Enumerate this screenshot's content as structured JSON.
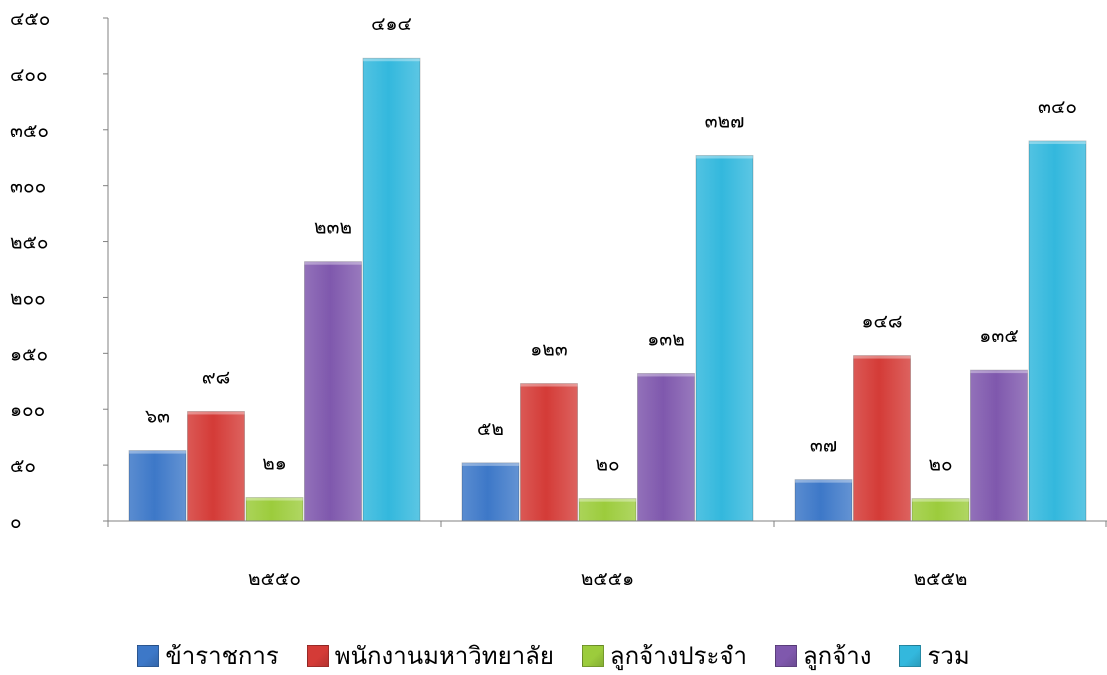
{
  "chart_data": {
    "type": "bar",
    "categories": [
      "๒๕๕๐",
      "๒๕๕๑",
      "๒๕๕๒"
    ],
    "series": [
      {
        "name": "ข้าราชการ",
        "color": "#3d78c8",
        "values": [
          63,
          52,
          37
        ],
        "value_labels": [
          "๖๓",
          "๕๒",
          "๓๗"
        ]
      },
      {
        "name": "พนักงานมหาวิทยาลัย",
        "color": "#d43b37",
        "values": [
          98,
          123,
          148
        ],
        "value_labels": [
          "๙๘",
          "๑๒๓",
          "๑๔๘"
        ]
      },
      {
        "name": "ลูกจ้างประจำ",
        "color": "#9ccc3c",
        "values": [
          21,
          20,
          20
        ],
        "value_labels": [
          "๒๑",
          "๒๐",
          "๒๐"
        ]
      },
      {
        "name": "ลูกจ้าง",
        "color": "#7f58ad",
        "values": [
          232,
          132,
          135
        ],
        "value_labels": [
          "๒๓๒",
          "๑๓๒",
          "๑๓๕"
        ]
      },
      {
        "name": "รวม",
        "color": "#33b8dd",
        "values": [
          414,
          327,
          340
        ],
        "value_labels": [
          "๔๑๔",
          "๓๒๗",
          "๓๔๐"
        ]
      }
    ],
    "ylim": [
      0,
      450
    ],
    "yticks": [
      0,
      50,
      100,
      150,
      200,
      250,
      300,
      350,
      400,
      450
    ],
    "ytick_labels": [
      "๐",
      "๕๐",
      "๑๐๐",
      "๑๕๐",
      "๒๐๐",
      "๒๕๐",
      "๓๐๐",
      "๓๕๐",
      "๔๐๐",
      "๔๕๐"
    ],
    "title": "",
    "xlabel": "",
    "ylabel": "",
    "grid": false,
    "legend_position": "bottom"
  }
}
